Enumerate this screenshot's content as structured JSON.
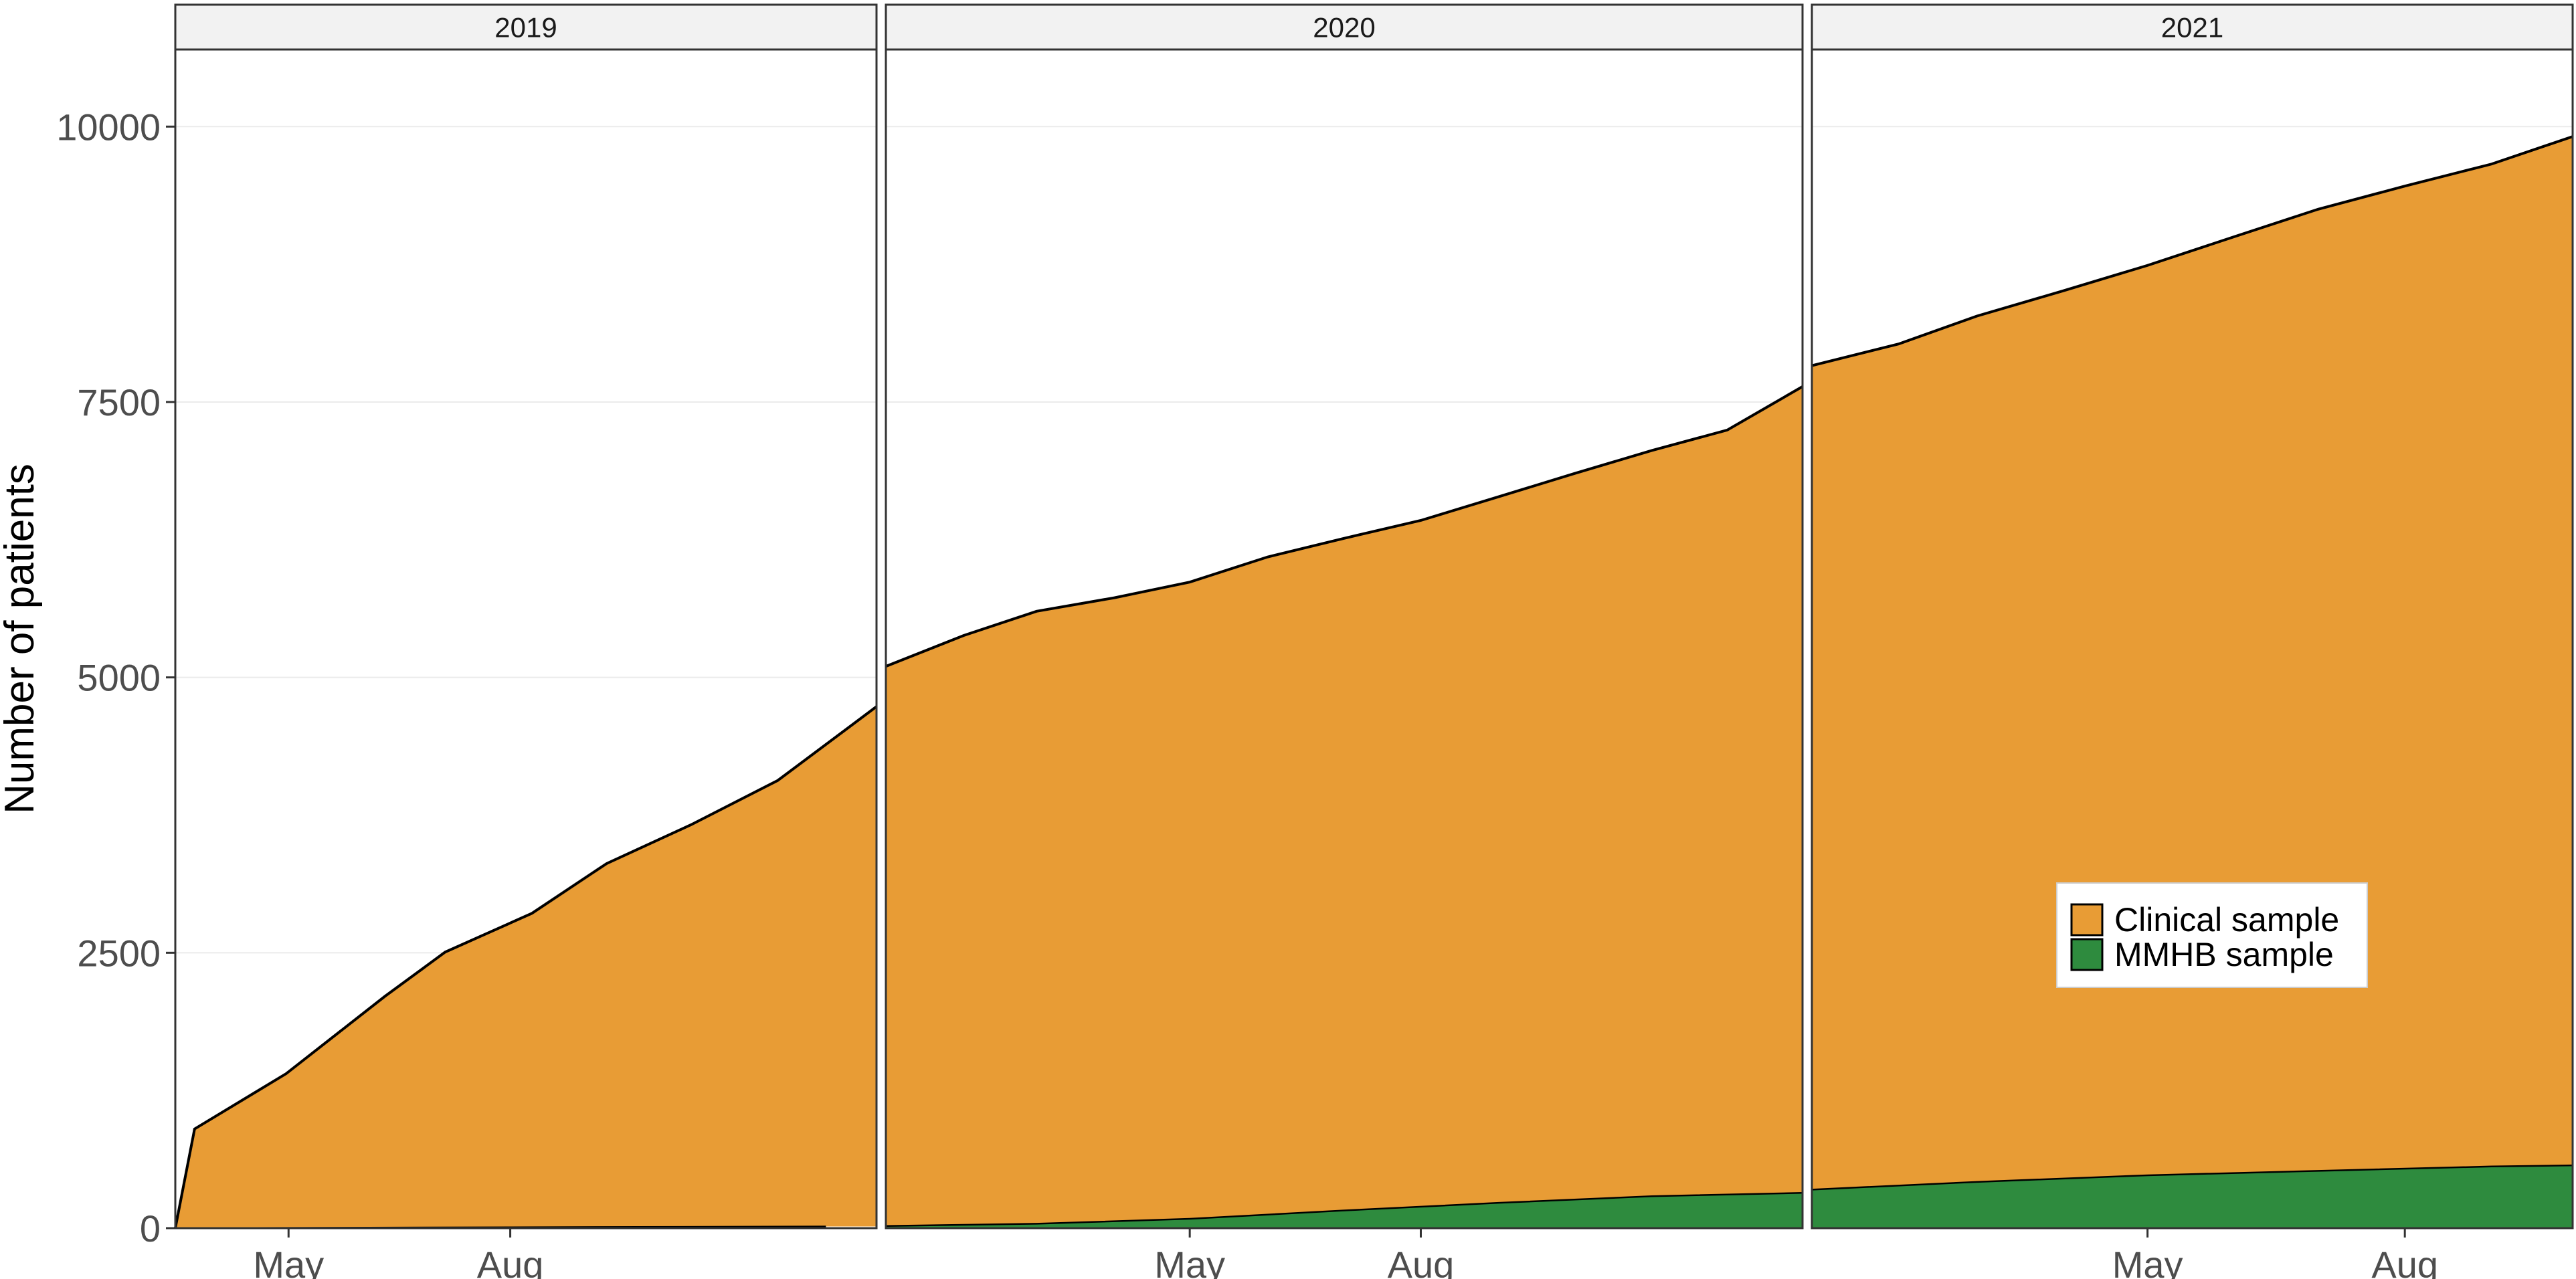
{
  "chart_data": {
    "type": "area",
    "stacked": true,
    "ylabel": "Number of patients",
    "xlabel": "",
    "ylim": [
      0,
      10700
    ],
    "y_ticks": [
      0,
      2500,
      5000,
      7500,
      10000
    ],
    "grid": true,
    "legend": {
      "placement": "inside-right",
      "entries": [
        {
          "label": "Clinical sample",
          "color": "#E89C35"
        },
        {
          "label": "MMHB sample",
          "color": "#2E8B3E"
        }
      ]
    },
    "facets": [
      {
        "label": "2019",
        "x_range": [
          "2019-03-15",
          "2019-12-31"
        ],
        "x_ticks": [
          {
            "date": "2019-05-01",
            "label": "May"
          },
          {
            "date": "2019-08-01",
            "label": "Aug"
          }
        ],
        "series": [
          {
            "name": "MMHB sample",
            "color": "#2E8B3E",
            "points": [
              [
                "2019-03-15",
                0
              ],
              [
                "2019-12-10",
                15
              ]
            ]
          },
          {
            "name": "Clinical sample",
            "color": "#E89C35",
            "points": [
              [
                "2019-03-15",
                0
              ],
              [
                "2019-03-23",
                900
              ],
              [
                "2019-04-30",
                1400
              ],
              [
                "2019-06-10",
                2100
              ],
              [
                "2019-07-05",
                2500
              ],
              [
                "2019-08-10",
                2850
              ],
              [
                "2019-09-10",
                3300
              ],
              [
                "2019-10-15",
                3650
              ],
              [
                "2019-11-20",
                4050
              ],
              [
                "2019-12-31",
                4720
              ]
            ]
          }
        ]
      },
      {
        "label": "2020",
        "x_range": [
          "2020-01-01",
          "2020-12-31"
        ],
        "x_ticks": [
          {
            "date": "2020-05-01",
            "label": "May"
          },
          {
            "date": "2020-08-01",
            "label": "Aug"
          }
        ],
        "series": [
          {
            "name": "MMHB sample",
            "color": "#2E8B3E",
            "points": [
              [
                "2020-01-01",
                20
              ],
              [
                "2020-03-01",
                40
              ],
              [
                "2020-05-01",
                85
              ],
              [
                "2020-07-01",
                160
              ],
              [
                "2020-09-01",
                230
              ],
              [
                "2020-11-01",
                290
              ],
              [
                "2020-12-31",
                320
              ]
            ]
          },
          {
            "name": "Clinical sample",
            "color": "#E89C35",
            "points": [
              [
                "2020-01-01",
                5080
              ],
              [
                "2020-02-01",
                5350
              ],
              [
                "2020-03-01",
                5560
              ],
              [
                "2020-04-01",
                5660
              ],
              [
                "2020-05-01",
                5780
              ],
              [
                "2020-06-01",
                5970
              ],
              [
                "2020-07-01",
                6100
              ],
              [
                "2020-08-01",
                6230
              ],
              [
                "2020-09-01",
                6410
              ],
              [
                "2020-10-01",
                6590
              ],
              [
                "2020-11-01",
                6770
              ],
              [
                "2020-12-01",
                6940
              ],
              [
                "2020-12-31",
                7320
              ]
            ]
          }
        ]
      },
      {
        "label": "2021",
        "x_range": [
          "2021-01-01",
          "2021-09-30"
        ],
        "x_ticks": [
          {
            "date": "2021-05-01",
            "label": "May"
          },
          {
            "date": "2021-08-01",
            "label": "Aug"
          }
        ],
        "series": [
          {
            "name": "MMHB sample",
            "color": "#2E8B3E",
            "points": [
              [
                "2021-01-01",
                350
              ],
              [
                "2021-03-01",
                420
              ],
              [
                "2021-05-01",
                480
              ],
              [
                "2021-07-01",
                520
              ],
              [
                "2021-09-01",
                560
              ],
              [
                "2021-09-30",
                570
              ]
            ]
          },
          {
            "name": "Clinical sample",
            "color": "#E89C35",
            "points": [
              [
                "2021-01-01",
                7480
              ],
              [
                "2021-02-01",
                7640
              ],
              [
                "2021-03-01",
                7860
              ],
              [
                "2021-04-01",
                8060
              ],
              [
                "2021-05-01",
                8260
              ],
              [
                "2021-06-01",
                8500
              ],
              [
                "2021-07-01",
                8730
              ],
              [
                "2021-08-01",
                8920
              ],
              [
                "2021-09-01",
                9100
              ],
              [
                "2021-09-30",
                9340
              ]
            ]
          }
        ]
      }
    ]
  }
}
